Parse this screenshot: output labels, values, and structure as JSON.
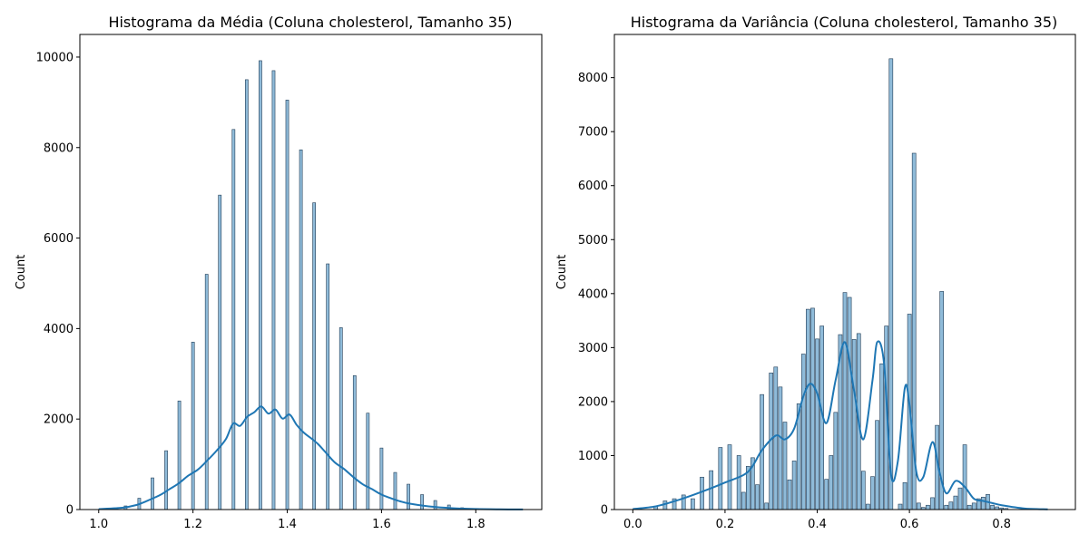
{
  "chart_data": [
    {
      "type": "bar",
      "title": "Histograma da Média (Coluna cholesterol, Tamanho 35)",
      "xlabel": "",
      "ylabel": "Count",
      "xlim": [
        0.96,
        1.94
      ],
      "ylim": [
        0,
        10500
      ],
      "xticks": [
        1.0,
        1.2,
        1.4,
        1.6,
        1.8
      ],
      "xtick_labels": [
        "1.0",
        "1.2",
        "1.4",
        "1.6",
        "1.8"
      ],
      "yticks": [
        0,
        2000,
        4000,
        6000,
        8000,
        10000
      ],
      "ytick_labels": [
        "0",
        "2000",
        "4000",
        "6000",
        "8000",
        "10000"
      ],
      "bins": [
        {
          "x": 1.057,
          "y": 80
        },
        {
          "x": 1.086,
          "y": 250
        },
        {
          "x": 1.114,
          "y": 700
        },
        {
          "x": 1.143,
          "y": 1300
        },
        {
          "x": 1.171,
          "y": 2400
        },
        {
          "x": 1.2,
          "y": 3700
        },
        {
          "x": 1.229,
          "y": 5200
        },
        {
          "x": 1.257,
          "y": 6950
        },
        {
          "x": 1.286,
          "y": 8400
        },
        {
          "x": 1.314,
          "y": 9500
        },
        {
          "x": 1.343,
          "y": 9920
        },
        {
          "x": 1.371,
          "y": 9700
        },
        {
          "x": 1.4,
          "y": 9050
        },
        {
          "x": 1.429,
          "y": 7950
        },
        {
          "x": 1.457,
          "y": 6780
        },
        {
          "x": 1.486,
          "y": 5430
        },
        {
          "x": 1.514,
          "y": 4020
        },
        {
          "x": 1.543,
          "y": 2960
        },
        {
          "x": 1.571,
          "y": 2130
        },
        {
          "x": 1.6,
          "y": 1360
        },
        {
          "x": 1.629,
          "y": 820
        },
        {
          "x": 1.657,
          "y": 560
        },
        {
          "x": 1.686,
          "y": 330
        },
        {
          "x": 1.714,
          "y": 200
        },
        {
          "x": 1.743,
          "y": 100
        },
        {
          "x": 1.771,
          "y": 40
        },
        {
          "x": 1.8,
          "y": 20
        }
      ],
      "bar_width": 0.006,
      "kde": {
        "x": [
          1.0,
          1.05,
          1.08,
          1.1,
          1.13,
          1.15,
          1.17,
          1.19,
          1.21,
          1.23,
          1.25,
          1.27,
          1.285,
          1.3,
          1.315,
          1.33,
          1.345,
          1.36,
          1.375,
          1.39,
          1.405,
          1.42,
          1.435,
          1.45,
          1.465,
          1.48,
          1.5,
          1.52,
          1.54,
          1.56,
          1.58,
          1.6,
          1.62,
          1.64,
          1.66,
          1.7,
          1.75,
          1.8,
          1.85,
          1.9
        ],
        "y": [
          10,
          40,
          100,
          180,
          320,
          450,
          580,
          750,
          880,
          1080,
          1300,
          1560,
          1900,
          1850,
          2050,
          2150,
          2280,
          2120,
          2210,
          2010,
          2100,
          1870,
          1700,
          1580,
          1450,
          1280,
          1050,
          900,
          720,
          560,
          450,
          330,
          250,
          180,
          130,
          70,
          30,
          12,
          5,
          2
        ]
      }
    },
    {
      "type": "bar",
      "title": "Histograma da Variância (Coluna cholesterol, Tamanho 35)",
      "xlabel": "",
      "ylabel": "Count",
      "xlim": [
        -0.04,
        0.96
      ],
      "ylim": [
        0,
        8800
      ],
      "xticks": [
        0.0,
        0.2,
        0.4,
        0.6,
        0.8
      ],
      "xtick_labels": [
        "0.0",
        "0.2",
        "0.4",
        "0.6",
        "0.8"
      ],
      "yticks": [
        0,
        1000,
        2000,
        3000,
        4000,
        5000,
        6000,
        7000,
        8000
      ],
      "ytick_labels": [
        "0",
        "1000",
        "2000",
        "3000",
        "4000",
        "5000",
        "6000",
        "7000",
        "8000"
      ],
      "bins": [
        {
          "x": 0.05,
          "y": 60
        },
        {
          "x": 0.07,
          "y": 160
        },
        {
          "x": 0.09,
          "y": 200
        },
        {
          "x": 0.11,
          "y": 270
        },
        {
          "x": 0.13,
          "y": 200
        },
        {
          "x": 0.15,
          "y": 600
        },
        {
          "x": 0.17,
          "y": 720
        },
        {
          "x": 0.19,
          "y": 1150
        },
        {
          "x": 0.21,
          "y": 1200
        },
        {
          "x": 0.23,
          "y": 1000
        },
        {
          "x": 0.24,
          "y": 320
        },
        {
          "x": 0.25,
          "y": 800
        },
        {
          "x": 0.26,
          "y": 960
        },
        {
          "x": 0.27,
          "y": 460
        },
        {
          "x": 0.28,
          "y": 2130
        },
        {
          "x": 0.29,
          "y": 120
        },
        {
          "x": 0.3,
          "y": 2530
        },
        {
          "x": 0.31,
          "y": 2640
        },
        {
          "x": 0.32,
          "y": 2270
        },
        {
          "x": 0.33,
          "y": 1620
        },
        {
          "x": 0.34,
          "y": 550
        },
        {
          "x": 0.35,
          "y": 900
        },
        {
          "x": 0.36,
          "y": 1960
        },
        {
          "x": 0.37,
          "y": 2880
        },
        {
          "x": 0.38,
          "y": 3710
        },
        {
          "x": 0.39,
          "y": 3730
        },
        {
          "x": 0.4,
          "y": 3160
        },
        {
          "x": 0.41,
          "y": 3400
        },
        {
          "x": 0.42,
          "y": 560
        },
        {
          "x": 0.43,
          "y": 1000
        },
        {
          "x": 0.44,
          "y": 1800
        },
        {
          "x": 0.45,
          "y": 3240
        },
        {
          "x": 0.46,
          "y": 4020
        },
        {
          "x": 0.47,
          "y": 3930
        },
        {
          "x": 0.48,
          "y": 3150
        },
        {
          "x": 0.49,
          "y": 3260
        },
        {
          "x": 0.5,
          "y": 710
        },
        {
          "x": 0.51,
          "y": 100
        },
        {
          "x": 0.52,
          "y": 610
        },
        {
          "x": 0.53,
          "y": 1650
        },
        {
          "x": 0.54,
          "y": 2700
        },
        {
          "x": 0.55,
          "y": 3400
        },
        {
          "x": 0.56,
          "y": 8350
        },
        {
          "x": 0.58,
          "y": 100
        },
        {
          "x": 0.59,
          "y": 500
        },
        {
          "x": 0.6,
          "y": 3620
        },
        {
          "x": 0.61,
          "y": 6600
        },
        {
          "x": 0.62,
          "y": 120
        },
        {
          "x": 0.63,
          "y": 40
        },
        {
          "x": 0.64,
          "y": 80
        },
        {
          "x": 0.65,
          "y": 220
        },
        {
          "x": 0.66,
          "y": 1560
        },
        {
          "x": 0.67,
          "y": 4040
        },
        {
          "x": 0.68,
          "y": 80
        },
        {
          "x": 0.69,
          "y": 140
        },
        {
          "x": 0.7,
          "y": 250
        },
        {
          "x": 0.71,
          "y": 400
        },
        {
          "x": 0.72,
          "y": 1200
        },
        {
          "x": 0.73,
          "y": 80
        },
        {
          "x": 0.74,
          "y": 120
        },
        {
          "x": 0.75,
          "y": 200
        },
        {
          "x": 0.76,
          "y": 230
        },
        {
          "x": 0.77,
          "y": 280
        },
        {
          "x": 0.78,
          "y": 80
        },
        {
          "x": 0.79,
          "y": 50
        },
        {
          "x": 0.8,
          "y": 30
        },
        {
          "x": 0.81,
          "y": 20
        }
      ],
      "bar_width": 0.008,
      "kde": {
        "x": [
          0.0,
          0.05,
          0.1,
          0.15,
          0.2,
          0.25,
          0.28,
          0.31,
          0.33,
          0.35,
          0.37,
          0.385,
          0.4,
          0.42,
          0.44,
          0.46,
          0.48,
          0.5,
          0.52,
          0.53,
          0.545,
          0.56,
          0.575,
          0.59,
          0.6,
          0.615,
          0.63,
          0.65,
          0.665,
          0.68,
          0.7,
          0.72,
          0.74,
          0.76,
          0.78,
          0.8,
          0.85,
          0.9
        ],
        "y": [
          10,
          60,
          180,
          330,
          500,
          700,
          1100,
          1370,
          1300,
          1500,
          2100,
          2330,
          2150,
          1600,
          2400,
          3100,
          2200,
          1300,
          2400,
          3100,
          2700,
          650,
          900,
          2250,
          1950,
          700,
          600,
          1250,
          700,
          300,
          530,
          420,
          200,
          160,
          120,
          80,
          20,
          5
        ]
      }
    }
  ]
}
